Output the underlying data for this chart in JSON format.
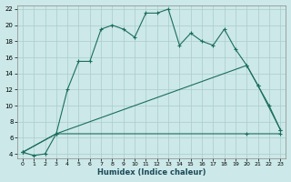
{
  "xlabel": "Humidex (Indice chaleur)",
  "bg_color": "#cce8e8",
  "grid_color": "#aacccc",
  "line_color": "#1a6e5e",
  "xlim": [
    -0.5,
    23.5
  ],
  "ylim": [
    3.5,
    22.5
  ],
  "yticks": [
    4,
    6,
    8,
    10,
    12,
    14,
    16,
    18,
    20,
    22
  ],
  "xticks": [
    0,
    1,
    2,
    3,
    4,
    5,
    6,
    7,
    8,
    9,
    10,
    11,
    12,
    13,
    14,
    15,
    16,
    17,
    18,
    19,
    20,
    21,
    22,
    23
  ],
  "line1_x": [
    0,
    1,
    2,
    3,
    4,
    5,
    6,
    7,
    8,
    9,
    10,
    11,
    12,
    13,
    14,
    15,
    16,
    17,
    18,
    19,
    20,
    21,
    22,
    23
  ],
  "line1_y": [
    4.2,
    3.8,
    4.0,
    6.5,
    12.0,
    15.5,
    15.5,
    19.5,
    20.0,
    19.5,
    18.5,
    21.5,
    21.5,
    22.0,
    17.5,
    19.0,
    18.0,
    17.5,
    19.5,
    17.0,
    15.0,
    12.5,
    10.0,
    7.0
  ],
  "line2_x": [
    0,
    3,
    20,
    23
  ],
  "line2_y": [
    4.2,
    6.5,
    6.5,
    6.5
  ],
  "line3_x": [
    0,
    3,
    20,
    21,
    23
  ],
  "line3_y": [
    4.2,
    6.5,
    15.0,
    12.5,
    7.0
  ]
}
